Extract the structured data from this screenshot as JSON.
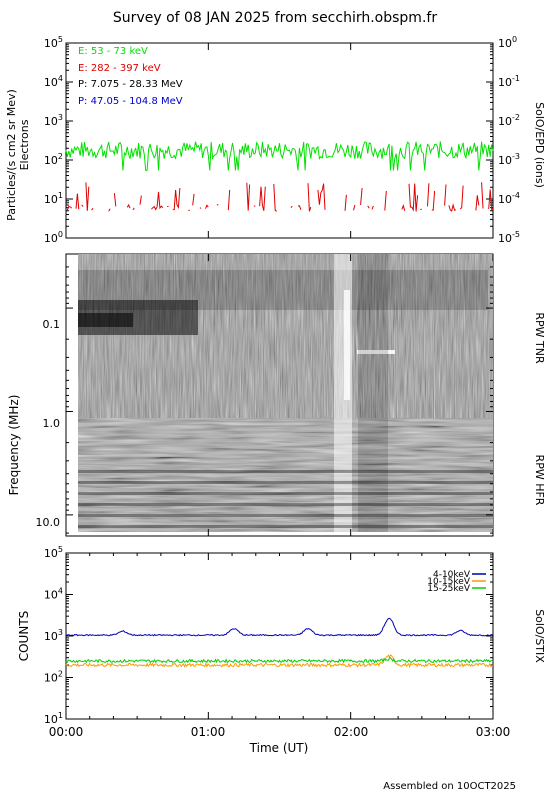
{
  "title": "Survey of 08 JAN 2025 from secchirh.obspm.fr",
  "footer": "Assembled on 10OCT2025",
  "colors": {
    "electrons_low": "#00e000",
    "electrons_high": "#e00000",
    "protons_low": "#000000",
    "protons_high": "#0000c8",
    "stix_4_10": "#0000b4",
    "stix_10_15": "#ff9900",
    "stix_15_25": "#00d000"
  },
  "chart_data": [
    {
      "type": "line",
      "panel": "epd",
      "ylabel_left": "Particles/(s cm2 sr Mev)",
      "ylabel_left2": "Electrons",
      "ylabel_right": "SolO/EPD (ions)",
      "yscale": "log",
      "ylim": [
        1,
        100000
      ],
      "yticks_left": [
        "10^0",
        "10^1",
        "10^2",
        "10^3",
        "10^4",
        "10^5"
      ],
      "yticks_right": [
        "10^-5",
        "10^-4",
        "10^-3",
        "10^-2",
        "10^-1",
        "10^0"
      ],
      "legend": [
        {
          "label": "E: 53 - 73 keV",
          "color": "#00e000"
        },
        {
          "label": "E: 282 - 397 keV",
          "color": "#e00000"
        },
        {
          "label": "P: 7.075 - 28.33 MeV",
          "color": "#000000"
        },
        {
          "label": "P: 47.05 - 104.8 MeV",
          "color": "#0000c8"
        }
      ],
      "series": [
        {
          "name": "E: 53 - 73 keV",
          "level": 180,
          "unit": "Particles/(s cm2 sr Mev)"
        },
        {
          "name": "E: 282 - 397 keV",
          "level": 6,
          "unit": "Particles/(s cm2 sr Mev)",
          "intermittent": true
        }
      ]
    },
    {
      "type": "heatmap",
      "panel": "rpw",
      "ylabel": "Frequency (MHz)",
      "yscale": "log",
      "ylim": [
        0.03,
        16
      ],
      "yticks": [
        "0.1",
        "1.0",
        "10.0"
      ],
      "bands": [
        {
          "label": "RPW TNR",
          "range_mhz": [
            0.03,
            1.0
          ]
        },
        {
          "label": "RPW HFR",
          "range_mhz": [
            1.0,
            16
          ]
        }
      ]
    },
    {
      "type": "line",
      "panel": "stix",
      "ylabel": "COUNTS",
      "ylabel_right": "SolO/STIX",
      "yscale": "log",
      "ylim": [
        10,
        100000
      ],
      "yticks": [
        "10^1",
        "10^2",
        "10^3",
        "10^4",
        "10^5"
      ],
      "xlabel": "Time (UT)",
      "xticks": [
        "00:00",
        "01:00",
        "02:00",
        "03:00"
      ],
      "xlim": [
        "00:00",
        "03:00"
      ],
      "legend": [
        {
          "label": "4-10keV",
          "color": "#0000b4"
        },
        {
          "label": "10-15keV",
          "color": "#ff9900"
        },
        {
          "label": "15-25keV",
          "color": "#00d000"
        }
      ],
      "series": [
        {
          "name": "4-10keV",
          "baseline": 1050,
          "peaks": [
            {
              "t": 0.4,
              "v": 1300
            },
            {
              "t": 1.18,
              "v": 1500
            },
            {
              "t": 1.7,
              "v": 1500
            },
            {
              "t": 2.27,
              "v": 2600
            },
            {
              "t": 2.77,
              "v": 1350
            }
          ]
        },
        {
          "name": "10-15keV",
          "baseline": 200,
          "peaks": [
            {
              "t": 2.27,
              "v": 330
            }
          ]
        },
        {
          "name": "15-25keV",
          "baseline": 250,
          "peaks": [
            {
              "t": 2.27,
              "v": 280
            }
          ]
        }
      ]
    }
  ]
}
